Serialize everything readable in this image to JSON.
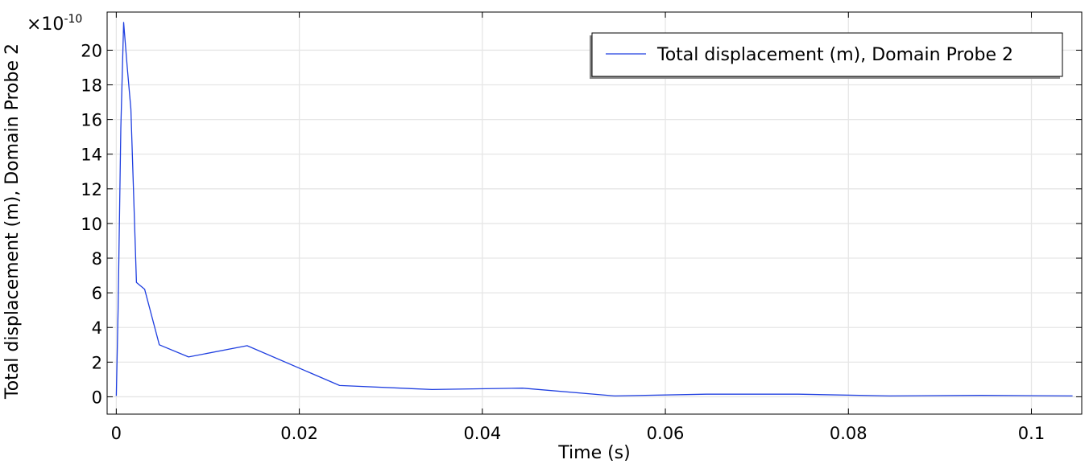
{
  "chart_data": {
    "type": "line",
    "xlabel": "Time (s)",
    "ylabel": "Total displacement (m), Domain Probe 2",
    "y_multiplier": {
      "base": "×10",
      "exponent": "-10"
    },
    "xlim": [
      -0.001,
      0.1055
    ],
    "ylim": [
      -1.0,
      22.2
    ],
    "x_ticks": [
      {
        "value": 0,
        "label": "0"
      },
      {
        "value": 0.02,
        "label": "0.02"
      },
      {
        "value": 0.04,
        "label": "0.04"
      },
      {
        "value": 0.06,
        "label": "0.06"
      },
      {
        "value": 0.08,
        "label": "0.08"
      },
      {
        "value": 0.1,
        "label": "0.1"
      }
    ],
    "y_ticks": [
      {
        "value": 0,
        "label": "0"
      },
      {
        "value": 2,
        "label": "2"
      },
      {
        "value": 4,
        "label": "4"
      },
      {
        "value": 6,
        "label": "6"
      },
      {
        "value": 8,
        "label": "8"
      },
      {
        "value": 10,
        "label": "10"
      },
      {
        "value": 12,
        "label": "12"
      },
      {
        "value": 14,
        "label": "14"
      },
      {
        "value": 16,
        "label": "16"
      },
      {
        "value": 18,
        "label": "18"
      },
      {
        "value": 20,
        "label": "20"
      }
    ],
    "grid": true,
    "legend_position": "top-right",
    "series": [
      {
        "name": "Total displacement (m), Domain Probe 2",
        "color": "#1f3fe0",
        "x": [
          0,
          0.0002,
          0.0005,
          0.0008,
          0.0012,
          0.0016,
          0.0022,
          0.0031,
          0.0047,
          0.0079,
          0.0143,
          0.0244,
          0.0345,
          0.0444,
          0.0545,
          0.0645,
          0.0745,
          0.0845,
          0.0945,
          0.1045
        ],
        "y": [
          0.05,
          5.0,
          15.5,
          21.6,
          19.0,
          16.6,
          6.6,
          6.2,
          3.0,
          2.3,
          2.95,
          0.65,
          0.42,
          0.5,
          0.05,
          0.15,
          0.15,
          0.05,
          0.08,
          0.05
        ]
      }
    ]
  }
}
